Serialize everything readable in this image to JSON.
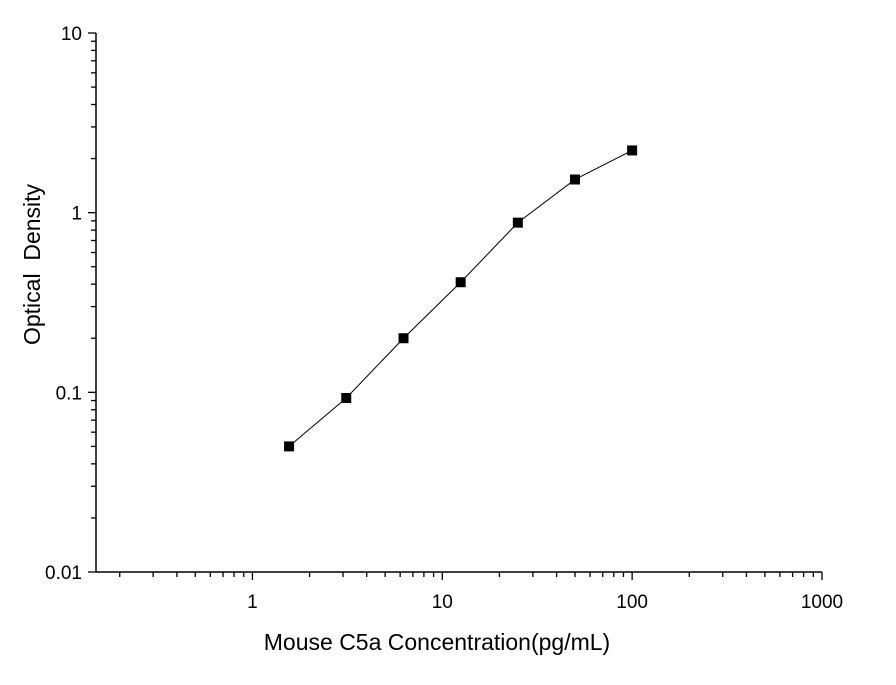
{
  "chart_data": {
    "type": "scatter",
    "title": "",
    "xlabel": "Mouse C5a Concentration(pg/mL)",
    "ylabel": "Optical  Density",
    "x_scale": "log",
    "y_scale": "log",
    "xlim": [
      0.15,
      1000
    ],
    "ylim": [
      0.01,
      10
    ],
    "grid": false,
    "legend": "none",
    "x_ticks": [
      1,
      10,
      100,
      1000
    ],
    "x_tick_labels": [
      "1",
      "10",
      "100",
      "1000"
    ],
    "y_ticks": [
      0.01,
      0.1,
      1,
      10
    ],
    "y_tick_labels": [
      "0.01",
      "0.1",
      "1",
      "10"
    ],
    "connect_points": true,
    "marker": "square",
    "series": [
      {
        "x": [
          1.56,
          3.12,
          6.25,
          12.5,
          25,
          50,
          100
        ],
        "y": [
          0.05,
          0.093,
          0.2,
          0.41,
          0.88,
          1.53,
          2.22
        ]
      }
    ],
    "colors": {
      "line": "#000000",
      "marker": "#000000",
      "axis": "#000000"
    }
  }
}
